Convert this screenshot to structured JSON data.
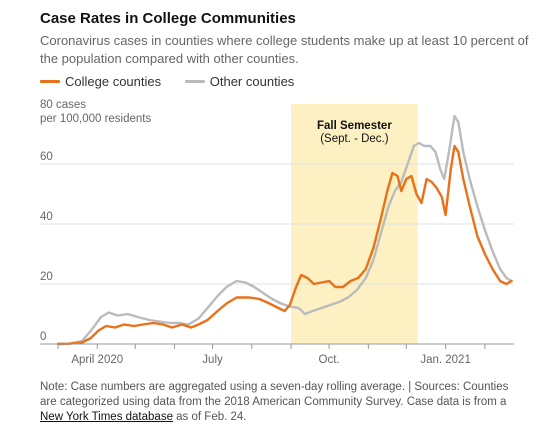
{
  "title": "Case Rates in College Communities",
  "subtitle": "Coronavirus cases in counties where college students make up at least 10 percent of the population compared with other counties.",
  "legend": {
    "college": "College counties",
    "other": "Other counties"
  },
  "colors": {
    "college": "#e8711a",
    "other": "#bbbbbb",
    "semester": "#fdf0c2",
    "grid": "#e2e2e2"
  },
  "note": {
    "text": "Note: Case numbers are aggregated using a seven-day rolling average. | Sources: Counties are categorized using data from the 2018 American Community Survey. Case data is from a ",
    "link": "New York Times database",
    "suffix": " as of Feb. 24."
  },
  "chart_data": {
    "type": "line",
    "title": "Case Rates in College Communities",
    "ylabel_line1": "80 cases",
    "ylabel_line2": "per 100,000 residents",
    "ylim": [
      0,
      80
    ],
    "yticks": [
      0,
      20,
      40,
      60
    ],
    "xlim": [
      "2020-03-01",
      "2021-02-24"
    ],
    "xticks": [
      {
        "date": "2020-04-01",
        "label": "April 2020"
      },
      {
        "date": "2020-07-01",
        "label": "July"
      },
      {
        "date": "2020-10-01",
        "label": "Oct."
      },
      {
        "date": "2021-01-01",
        "label": "Jan. 2021"
      }
    ],
    "grid": true,
    "legend_position": "top-left",
    "annotation": {
      "label": "Fall Semester",
      "sublabel": "(Sept. - Dec.)",
      "start": "2020-09-01",
      "end": "2020-12-10"
    },
    "series": [
      {
        "name": "College counties",
        "points": [
          [
            "2020-03-01",
            0
          ],
          [
            "2020-03-10",
            0.1
          ],
          [
            "2020-03-20",
            0.5
          ],
          [
            "2020-03-27",
            2
          ],
          [
            "2020-04-02",
            4.5
          ],
          [
            "2020-04-08",
            6
          ],
          [
            "2020-04-15",
            5.5
          ],
          [
            "2020-04-22",
            6.5
          ],
          [
            "2020-04-30",
            6
          ],
          [
            "2020-05-07",
            6.5
          ],
          [
            "2020-05-15",
            7
          ],
          [
            "2020-05-23",
            6.5
          ],
          [
            "2020-05-30",
            5.5
          ],
          [
            "2020-06-07",
            6.5
          ],
          [
            "2020-06-14",
            5.5
          ],
          [
            "2020-06-20",
            6.5
          ],
          [
            "2020-06-27",
            8
          ],
          [
            "2020-07-05",
            11
          ],
          [
            "2020-07-12",
            13.5
          ],
          [
            "2020-07-20",
            15.5
          ],
          [
            "2020-07-30",
            15.5
          ],
          [
            "2020-08-07",
            15
          ],
          [
            "2020-08-15",
            13.5
          ],
          [
            "2020-08-22",
            12
          ],
          [
            "2020-08-27",
            11
          ],
          [
            "2020-08-31",
            13
          ],
          [
            "2020-09-05",
            19
          ],
          [
            "2020-09-09",
            23
          ],
          [
            "2020-09-14",
            22
          ],
          [
            "2020-09-19",
            20
          ],
          [
            "2020-09-25",
            20.5
          ],
          [
            "2020-10-01",
            21
          ],
          [
            "2020-10-06",
            19
          ],
          [
            "2020-10-12",
            19
          ],
          [
            "2020-10-18",
            21
          ],
          [
            "2020-10-24",
            22
          ],
          [
            "2020-10-30",
            25
          ],
          [
            "2020-11-05",
            32
          ],
          [
            "2020-11-11",
            42
          ],
          [
            "2020-11-16",
            51
          ],
          [
            "2020-11-20",
            57
          ],
          [
            "2020-11-24",
            56
          ],
          [
            "2020-11-27",
            51
          ],
          [
            "2020-12-01",
            55
          ],
          [
            "2020-12-05",
            56
          ],
          [
            "2020-12-09",
            50
          ],
          [
            "2020-12-13",
            47
          ],
          [
            "2020-12-17",
            55
          ],
          [
            "2020-12-21",
            54
          ],
          [
            "2020-12-25",
            52
          ],
          [
            "2020-12-29",
            49
          ],
          [
            "2021-01-01",
            43
          ],
          [
            "2021-01-05",
            58
          ],
          [
            "2021-01-08",
            66
          ],
          [
            "2021-01-11",
            64
          ],
          [
            "2021-01-15",
            55
          ],
          [
            "2021-01-20",
            46
          ],
          [
            "2021-01-26",
            36
          ],
          [
            "2021-02-01",
            30
          ],
          [
            "2021-02-07",
            25
          ],
          [
            "2021-02-13",
            21
          ],
          [
            "2021-02-18",
            20
          ],
          [
            "2021-02-22",
            21
          ]
        ]
      },
      {
        "name": "Other counties",
        "points": [
          [
            "2020-03-01",
            0
          ],
          [
            "2020-03-10",
            0.1
          ],
          [
            "2020-03-20",
            1
          ],
          [
            "2020-03-28",
            5
          ],
          [
            "2020-04-04",
            9
          ],
          [
            "2020-04-10",
            10.5
          ],
          [
            "2020-04-17",
            9.5
          ],
          [
            "2020-04-25",
            10
          ],
          [
            "2020-05-03",
            9
          ],
          [
            "2020-05-12",
            8
          ],
          [
            "2020-05-20",
            7.5
          ],
          [
            "2020-05-28",
            7
          ],
          [
            "2020-06-05",
            7
          ],
          [
            "2020-06-12",
            6.5
          ],
          [
            "2020-06-20",
            8.5
          ],
          [
            "2020-06-27",
            12
          ],
          [
            "2020-07-05",
            16
          ],
          [
            "2020-07-12",
            19
          ],
          [
            "2020-07-20",
            21
          ],
          [
            "2020-07-27",
            20.5
          ],
          [
            "2020-08-03",
            19
          ],
          [
            "2020-08-10",
            17
          ],
          [
            "2020-08-17",
            15
          ],
          [
            "2020-08-24",
            13.5
          ],
          [
            "2020-08-31",
            12.5
          ],
          [
            "2020-09-07",
            12
          ],
          [
            "2020-09-12",
            10
          ],
          [
            "2020-09-18",
            11
          ],
          [
            "2020-09-25",
            12
          ],
          [
            "2020-10-02",
            13
          ],
          [
            "2020-10-09",
            14
          ],
          [
            "2020-10-16",
            15.5
          ],
          [
            "2020-10-23",
            18
          ],
          [
            "2020-10-30",
            22
          ],
          [
            "2020-11-05",
            28
          ],
          [
            "2020-11-11",
            37
          ],
          [
            "2020-11-17",
            46
          ],
          [
            "2020-11-22",
            51
          ],
          [
            "2020-11-27",
            54
          ],
          [
            "2020-12-02",
            60
          ],
          [
            "2020-12-07",
            66
          ],
          [
            "2020-12-11",
            67
          ],
          [
            "2020-12-15",
            66
          ],
          [
            "2020-12-20",
            66
          ],
          [
            "2020-12-24",
            64
          ],
          [
            "2020-12-28",
            58
          ],
          [
            "2020-12-31",
            55
          ],
          [
            "2021-01-04",
            65
          ],
          [
            "2021-01-08",
            76
          ],
          [
            "2021-01-11",
            74
          ],
          [
            "2021-01-15",
            64
          ],
          [
            "2021-01-20",
            55
          ],
          [
            "2021-01-26",
            46
          ],
          [
            "2021-02-01",
            38
          ],
          [
            "2021-02-07",
            31
          ],
          [
            "2021-02-13",
            25
          ],
          [
            "2021-02-18",
            22
          ],
          [
            "2021-02-22",
            21
          ]
        ]
      }
    ]
  }
}
